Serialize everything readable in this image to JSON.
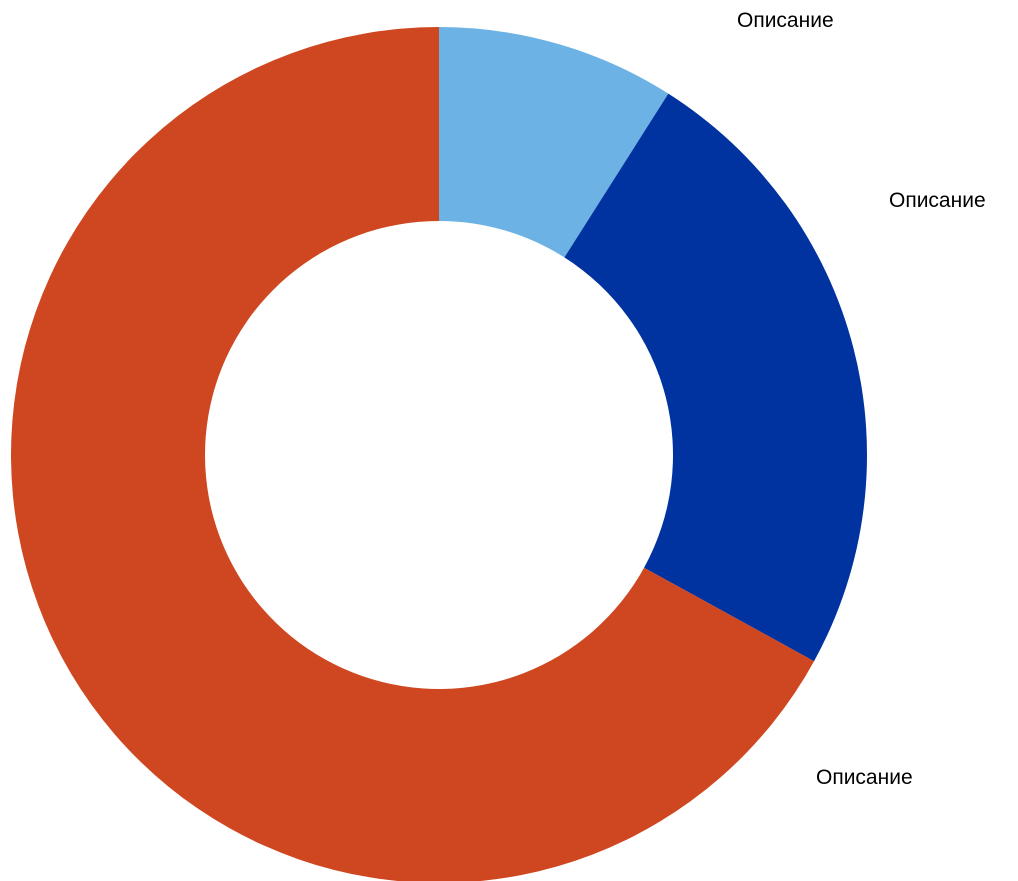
{
  "chart_data": {
    "type": "pie",
    "style": "donut",
    "start_angle": "12 o'clock",
    "direction": "clockwise",
    "slices": [
      {
        "label": "Описание",
        "value": 9,
        "color": "#6CB2E4"
      },
      {
        "label": "Описание",
        "value": 24,
        "color": "#0033A0"
      },
      {
        "label": "Описание",
        "value": 67,
        "color": "#CF4720"
      }
    ]
  }
}
